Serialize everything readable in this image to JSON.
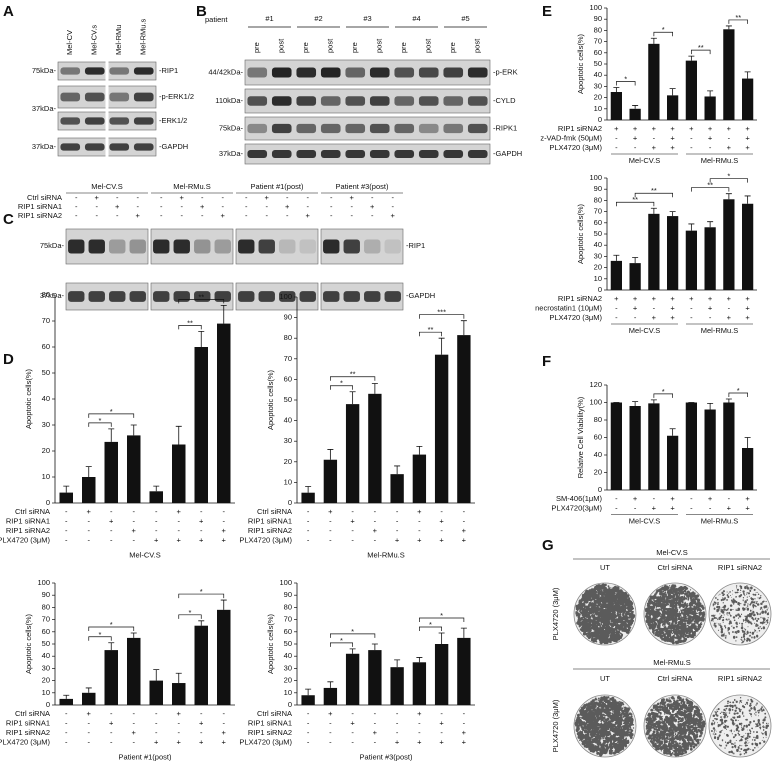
{
  "panels": {
    "A": {
      "letter": "A",
      "lanes": [
        "Mel-CV",
        "Mel-CV.s",
        "Mel-RMu",
        "Mel-RMu.s"
      ],
      "markers": [
        "75kDa-",
        "37kDa-",
        "37kDa-"
      ],
      "bands": [
        "-RIP1",
        "-p-ERK1/2",
        "-ERK1/2",
        "-GAPDH"
      ]
    },
    "B": {
      "letter": "B",
      "header": "patient",
      "patients": [
        "#1",
        "#2",
        "#3",
        "#4",
        "#5"
      ],
      "lanes": [
        "pre",
        "post"
      ],
      "markers": [
        "44/42kDa-",
        "110kDa-",
        "75kDa-",
        "37kDa-"
      ],
      "bands": [
        "-p-ERK",
        "-CYLD",
        "-RIPK1",
        "-GAPDH"
      ]
    },
    "C": {
      "letter": "C",
      "groups": [
        "Mel-CV.S",
        "Mel-RMu.S",
        "Patient #1(post)",
        "Patient #3(post)"
      ],
      "conditions": [
        {
          "label": "Ctrl siRNA",
          "signs": [
            "-",
            "+",
            "-",
            "-"
          ]
        },
        {
          "label": "RIP1 siRNA1",
          "signs": [
            "-",
            "-",
            "+",
            "-"
          ]
        },
        {
          "label": "RIP1 siRNA2",
          "signs": [
            "-",
            "-",
            "-",
            "+"
          ]
        }
      ],
      "markers": [
        "75kDa-",
        "37kDa-"
      ],
      "bands": [
        "-RIP1",
        "-GAPDH"
      ]
    },
    "D": {
      "letter": "D"
    },
    "E": {
      "letter": "E"
    },
    "F": {
      "letter": "F"
    },
    "G": {
      "letter": "G",
      "rows": [
        {
          "label": "Mel-CV.S",
          "treatment": "PLX4720 (3μM)"
        },
        {
          "label": "Mel-RMu.S",
          "treatment": "PLX4720 (3μM)"
        }
      ],
      "columns": [
        "UT",
        "Ctrl siRNA",
        "RIP1 siRNA2"
      ]
    }
  },
  "chart_data": [
    {
      "type": "bar",
      "ylabel": "Apoptotic cells(%)",
      "ylim": [
        0,
        80
      ],
      "yticks": [
        0,
        10,
        20,
        30,
        40,
        50,
        60,
        70,
        80
      ],
      "values": [
        4,
        10,
        23.5,
        26,
        4.5,
        22.5,
        60,
        69
      ],
      "errors": [
        2.5,
        4,
        5,
        4,
        2,
        7,
        6,
        7
      ],
      "color": "#111111",
      "conditions": [
        {
          "label": "Ctrl siRNA",
          "signs": [
            "-",
            "+",
            "-",
            "-",
            "-",
            "+",
            "-",
            "-"
          ]
        },
        {
          "label": "RIP1 siRNA1",
          "signs": [
            "-",
            "-",
            "+",
            "-",
            "-",
            "-",
            "+",
            "-"
          ]
        },
        {
          "label": "RIP1 siRNA2",
          "signs": [
            "-",
            "-",
            "-",
            "+",
            "-",
            "-",
            "-",
            "+"
          ]
        },
        {
          "label": "PLX4720 (3μM)",
          "signs": [
            "-",
            "-",
            "-",
            "-",
            "+",
            "+",
            "+",
            "+"
          ]
        }
      ],
      "xlabel": "Mel-CV.S",
      "brackets": [
        {
          "label": "*",
          "bars": [
            1,
            2
          ]
        },
        {
          "label": "*",
          "bars": [
            1,
            3
          ]
        },
        {
          "label": "**",
          "bars": [
            5,
            6
          ]
        },
        {
          "label": "**",
          "bars": [
            5,
            7
          ]
        }
      ]
    },
    {
      "type": "bar",
      "ylabel": "Apoptotic cells(%)",
      "ylim": [
        0,
        100
      ],
      "yticks": [
        0,
        10,
        20,
        30,
        40,
        50,
        60,
        70,
        80,
        90,
        100
      ],
      "values": [
        5,
        21,
        48,
        53,
        14,
        23.5,
        72,
        81.5
      ],
      "errors": [
        3,
        5,
        6,
        5,
        4,
        4,
        8,
        7
      ],
      "color": "#111111",
      "conditions": [
        {
          "label": "Ctrl siRNA",
          "signs": [
            "-",
            "+",
            "-",
            "-",
            "-",
            "+",
            "-",
            "-"
          ]
        },
        {
          "label": "RIP1 siRNA1",
          "signs": [
            "-",
            "-",
            "+",
            "-",
            "-",
            "-",
            "+",
            "-"
          ]
        },
        {
          "label": "RIP1 siRNA2",
          "signs": [
            "-",
            "-",
            "-",
            "+",
            "-",
            "-",
            "-",
            "+"
          ]
        },
        {
          "label": "PLX4720 (3μM)",
          "signs": [
            "-",
            "-",
            "-",
            "-",
            "+",
            "+",
            "+",
            "+"
          ]
        }
      ],
      "xlabel": "Mel-RMu.S",
      "brackets": [
        {
          "label": "*",
          "bars": [
            1,
            2
          ]
        },
        {
          "label": "**",
          "bars": [
            1,
            3
          ]
        },
        {
          "label": "**",
          "bars": [
            5,
            6
          ]
        },
        {
          "label": "***",
          "bars": [
            5,
            7
          ]
        }
      ]
    },
    {
      "type": "bar",
      "ylabel": "Apoptotic cells(%)",
      "ylim": [
        0,
        100
      ],
      "yticks": [
        0,
        10,
        20,
        30,
        40,
        50,
        60,
        70,
        80,
        90,
        100
      ],
      "values": [
        5,
        10,
        45,
        55,
        20,
        18,
        65,
        78
      ],
      "errors": [
        3,
        4,
        6,
        4,
        9,
        8,
        4,
        8
      ],
      "color": "#111111",
      "conditions": [
        {
          "label": "Ctrl siRNA",
          "signs": [
            "-",
            "+",
            "-",
            "-",
            "-",
            "+",
            "-",
            "-"
          ]
        },
        {
          "label": "RIP1 siRNA1",
          "signs": [
            "-",
            "-",
            "+",
            "-",
            "-",
            "-",
            "+",
            "-"
          ]
        },
        {
          "label": "RIP1 siRNA2",
          "signs": [
            "-",
            "-",
            "-",
            "+",
            "-",
            "-",
            "-",
            "+"
          ]
        },
        {
          "label": "PLX4720 (3μM)",
          "signs": [
            "-",
            "-",
            "-",
            "-",
            "+",
            "+",
            "+",
            "+"
          ]
        }
      ],
      "xlabel": "Patient #1(post)",
      "brackets": [
        {
          "label": "*",
          "bars": [
            1,
            2
          ]
        },
        {
          "label": "*",
          "bars": [
            1,
            3
          ]
        },
        {
          "label": "*",
          "bars": [
            5,
            6
          ]
        },
        {
          "label": "*",
          "bars": [
            5,
            7
          ]
        }
      ]
    },
    {
      "type": "bar",
      "ylabel": "Apoptotic cells(%)",
      "ylim": [
        0,
        100
      ],
      "yticks": [
        0,
        10,
        20,
        30,
        40,
        50,
        60,
        70,
        80,
        90,
        100
      ],
      "values": [
        8,
        14,
        42,
        45,
        31,
        35,
        50,
        55
      ],
      "errors": [
        5,
        5,
        4,
        5,
        6,
        4,
        9,
        8
      ],
      "color": "#111111",
      "conditions": [
        {
          "label": "Ctrl siRNA",
          "signs": [
            "-",
            "+",
            "-",
            "-",
            "-",
            "+",
            "-",
            "-"
          ]
        },
        {
          "label": "RIP1 siRNA1",
          "signs": [
            "-",
            "-",
            "+",
            "-",
            "-",
            "-",
            "+",
            "-"
          ]
        },
        {
          "label": "RIP1 siRNA2",
          "signs": [
            "-",
            "-",
            "-",
            "+",
            "-",
            "-",
            "-",
            "+"
          ]
        },
        {
          "label": "PLX4720 (3μM)",
          "signs": [
            "-",
            "-",
            "-",
            "-",
            "+",
            "+",
            "+",
            "+"
          ]
        }
      ],
      "xlabel": "Patient #3(post)",
      "brackets": [
        {
          "label": "*",
          "bars": [
            1,
            2
          ]
        },
        {
          "label": "*",
          "bars": [
            1,
            3
          ]
        },
        {
          "label": "*",
          "bars": [
            5,
            6
          ]
        },
        {
          "label": "*",
          "bars": [
            5,
            7
          ]
        }
      ]
    },
    {
      "type": "bar",
      "ylabel": "Apoptotic cells(%)",
      "ylim": [
        0,
        100
      ],
      "yticks": [
        0,
        10,
        20,
        30,
        40,
        50,
        60,
        70,
        80,
        90,
        100
      ],
      "values": [
        25,
        10,
        68,
        22,
        53,
        21,
        81,
        37
      ],
      "errors": [
        4,
        3,
        5,
        6,
        4,
        5,
        3,
        6
      ],
      "color": "#111111",
      "conditions": [
        {
          "label": "RIP1 siRNA2",
          "signs": [
            "+",
            "+",
            "+",
            "+",
            "+",
            "+",
            "+",
            "+"
          ]
        },
        {
          "label": "z-VAD-fmk (50μM)",
          "signs": [
            "-",
            "+",
            "-",
            "+",
            "-",
            "+",
            "-",
            "+"
          ]
        },
        {
          "label": "PLX4720 (3μM)",
          "signs": [
            "-",
            "-",
            "+",
            "+",
            "-",
            "-",
            "+",
            "+"
          ]
        }
      ],
      "groups": [
        "Mel-CV.S",
        "Mel-RMu.S"
      ],
      "brackets": [
        {
          "label": "*",
          "bars": [
            0,
            1
          ]
        },
        {
          "label": "*",
          "bars": [
            2,
            3
          ]
        },
        {
          "label": "**",
          "bars": [
            4,
            5
          ]
        },
        {
          "label": "**",
          "bars": [
            6,
            7
          ]
        }
      ]
    },
    {
      "type": "bar",
      "ylabel": "Apoptotic cells(%)",
      "ylim": [
        0,
        100
      ],
      "yticks": [
        0,
        10,
        20,
        30,
        40,
        50,
        60,
        70,
        80,
        90,
        100
      ],
      "values": [
        26,
        24,
        68,
        66,
        53,
        56,
        81,
        77
      ],
      "errors": [
        5,
        5,
        5,
        4,
        6,
        5,
        5,
        7
      ],
      "color": "#111111",
      "conditions": [
        {
          "label": "RIP1 siRNA2",
          "signs": [
            "+",
            "+",
            "+",
            "+",
            "+",
            "+",
            "+",
            "+"
          ]
        },
        {
          "label": "necrostatin1 (10μM)",
          "signs": [
            "-",
            "+",
            "-",
            "+",
            "-",
            "+",
            "-",
            "+"
          ]
        },
        {
          "label": "PLX4720 (3μM)",
          "signs": [
            "-",
            "-",
            "+",
            "+",
            "-",
            "-",
            "+",
            "+"
          ]
        }
      ],
      "groups": [
        "Mel-CV.S",
        "Mel-RMu.S"
      ],
      "brackets": [
        {
          "label": "**",
          "bars": [
            0,
            2
          ]
        },
        {
          "label": "**",
          "bars": [
            1,
            3
          ]
        },
        {
          "label": "**",
          "bars": [
            4,
            6
          ]
        },
        {
          "label": "*",
          "bars": [
            5,
            7
          ]
        }
      ]
    },
    {
      "type": "bar",
      "ylabel": "Relative Cell Viability(%)",
      "ylim": [
        0,
        120
      ],
      "yticks": [
        0,
        20,
        40,
        60,
        80,
        100,
        120
      ],
      "values": [
        100,
        96,
        99,
        62,
        100,
        92,
        100,
        48
      ],
      "errors": [
        0,
        5,
        4,
        8,
        0,
        7,
        4,
        12
      ],
      "color": "#111111",
      "conditions": [
        {
          "label": "SM-406(1μM)",
          "signs": [
            "-",
            "+",
            "-",
            "+",
            "-",
            "+",
            "-",
            "+"
          ]
        },
        {
          "label": "PLX4720(3μM)",
          "signs": [
            "-",
            "-",
            "+",
            "+",
            "-",
            "-",
            "+",
            "+"
          ]
        }
      ],
      "groups": [
        "Mel-CV.S",
        "Mel-RMu.S"
      ],
      "brackets": [
        {
          "label": "*",
          "bars": [
            2,
            3
          ]
        },
        {
          "label": "*",
          "bars": [
            6,
            7
          ]
        }
      ]
    }
  ]
}
